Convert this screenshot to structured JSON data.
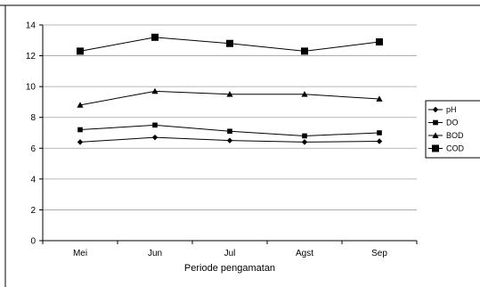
{
  "chart_data": {
    "type": "line",
    "categories": [
      "Mei",
      "Jun",
      "Jul",
      "Agst",
      "Sep"
    ],
    "series": [
      {
        "name": "pH",
        "marker": "diamond",
        "values": [
          6.4,
          6.7,
          6.5,
          6.4,
          6.45
        ]
      },
      {
        "name": "DO",
        "marker": "square",
        "values": [
          7.2,
          7.5,
          7.1,
          6.8,
          7.0
        ]
      },
      {
        "name": "BOD",
        "marker": "triangle",
        "values": [
          8.8,
          9.7,
          9.5,
          9.5,
          9.2
        ]
      },
      {
        "name": "COD",
        "marker": "square-large",
        "values": [
          12.3,
          13.2,
          12.8,
          12.3,
          12.9
        ]
      }
    ],
    "title": "",
    "xlabel": "Periode pengamatan",
    "ylabel": "",
    "ylim": [
      0,
      14
    ],
    "yticks": [
      "0",
      "2",
      "4",
      "6",
      "8",
      "10",
      "12",
      "14"
    ],
    "grid": true,
    "legend_position": "right",
    "colors": {
      "line": "#000000",
      "grid": "#a0a0a0",
      "background": "#ffffff"
    }
  }
}
